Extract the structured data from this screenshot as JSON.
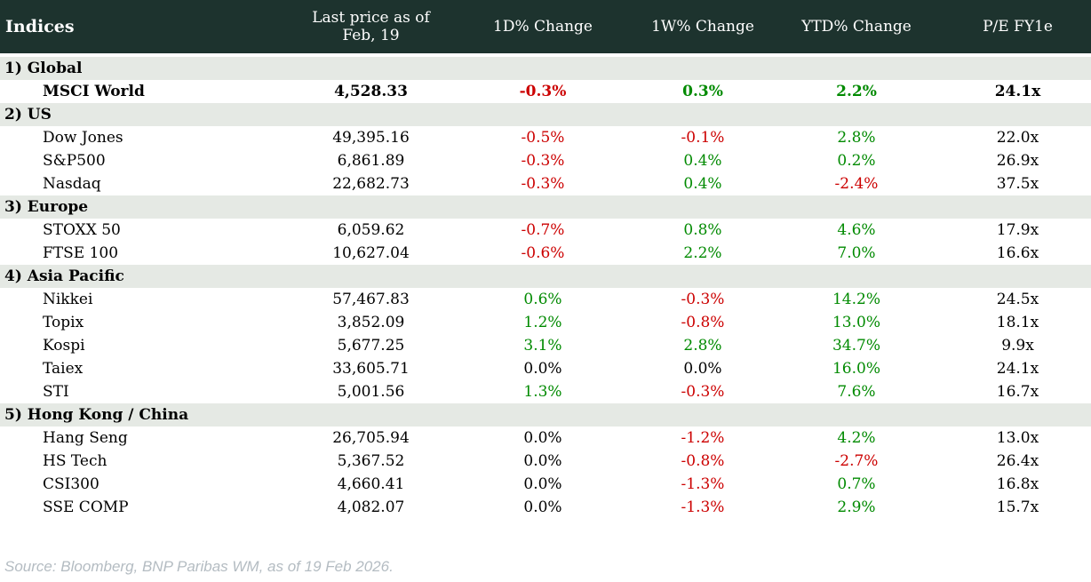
{
  "colors": {
    "header_bg": "#1d332e",
    "section_bg": "#e5e9e4",
    "negative": "#cc0000",
    "positive": "#008a00",
    "neutral": "#000000",
    "source_text": "#b4bcc2"
  },
  "table": {
    "columns": [
      "Indices",
      "Last price as of Feb, 19",
      "1D% Change",
      "1W% Change",
      "YTD% Change",
      "P/E FY1e"
    ],
    "sections": [
      {
        "label": "1) Global",
        "rows": [
          {
            "name": "MSCI World",
            "price": "4,528.33",
            "d1": "-0.3%",
            "w1": "0.3%",
            "ytd": "2.2%",
            "pe": "24.1x",
            "bold": true
          }
        ]
      },
      {
        "label": "2) US",
        "rows": [
          {
            "name": "Dow Jones",
            "price": "49,395.16",
            "d1": "-0.5%",
            "w1": "-0.1%",
            "ytd": "2.8%",
            "pe": "22.0x"
          },
          {
            "name": "S&P500",
            "price": "6,861.89",
            "d1": "-0.3%",
            "w1": "0.4%",
            "ytd": "0.2%",
            "pe": "26.9x"
          },
          {
            "name": "Nasdaq",
            "price": "22,682.73",
            "d1": "-0.3%",
            "w1": "0.4%",
            "ytd": "-2.4%",
            "pe": "37.5x"
          }
        ]
      },
      {
        "label": "3) Europe",
        "rows": [
          {
            "name": "STOXX 50",
            "price": "6,059.62",
            "d1": "-0.7%",
            "w1": "0.8%",
            "ytd": "4.6%",
            "pe": "17.9x"
          },
          {
            "name": "FTSE 100",
            "price": "10,627.04",
            "d1": "-0.6%",
            "w1": "2.2%",
            "ytd": "7.0%",
            "pe": "16.6x"
          }
        ]
      },
      {
        "label": "4) Asia Pacific",
        "rows": [
          {
            "name": "Nikkei",
            "price": "57,467.83",
            "d1": "0.6%",
            "w1": "-0.3%",
            "ytd": "14.2%",
            "pe": "24.5x"
          },
          {
            "name": "Topix",
            "price": "3,852.09",
            "d1": "1.2%",
            "w1": "-0.8%",
            "ytd": "13.0%",
            "pe": "18.1x"
          },
          {
            "name": "Kospi",
            "price": "5,677.25",
            "d1": "3.1%",
            "w1": "2.8%",
            "ytd": "34.7%",
            "pe": "9.9x"
          },
          {
            "name": "Taiex",
            "price": "33,605.71",
            "d1": "0.0%",
            "w1": "0.0%",
            "ytd": "16.0%",
            "pe": "24.1x"
          },
          {
            "name": "STI",
            "price": "5,001.56",
            "d1": "1.3%",
            "w1": "-0.3%",
            "ytd": "7.6%",
            "pe": "16.7x"
          }
        ]
      },
      {
        "label": "5) Hong Kong / China",
        "rows": [
          {
            "name": "Hang Seng",
            "price": "26,705.94",
            "d1": "0.0%",
            "w1": "-1.2%",
            "ytd": "4.2%",
            "pe": "13.0x"
          },
          {
            "name": "HS Tech",
            "price": "5,367.52",
            "d1": "0.0%",
            "w1": "-0.8%",
            "ytd": "-2.7%",
            "pe": "26.4x"
          },
          {
            "name": "CSI300",
            "price": "4,660.41",
            "d1": "0.0%",
            "w1": "-1.3%",
            "ytd": "0.7%",
            "pe": "16.8x"
          },
          {
            "name": "SSE COMP",
            "price": "4,082.07",
            "d1": "0.0%",
            "w1": "-1.3%",
            "ytd": "2.9%",
            "pe": "15.7x"
          }
        ]
      }
    ]
  },
  "footer": {
    "source": "Source: Bloomberg, BNP Paribas WM, as of 19 Feb 2026."
  }
}
